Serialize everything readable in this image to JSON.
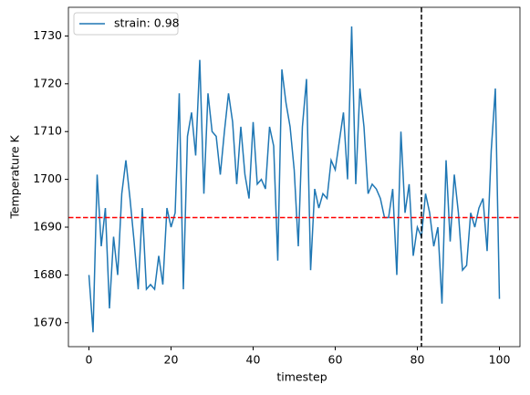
{
  "chart_data": {
    "type": "line",
    "xlabel": "timestep",
    "ylabel": "Temperature K",
    "x": [
      0,
      1,
      2,
      3,
      4,
      5,
      6,
      7,
      8,
      9,
      10,
      11,
      12,
      13,
      14,
      15,
      16,
      17,
      18,
      19,
      20,
      21,
      22,
      23,
      24,
      25,
      26,
      27,
      28,
      29,
      30,
      31,
      32,
      33,
      34,
      35,
      36,
      37,
      38,
      39,
      40,
      41,
      42,
      43,
      44,
      45,
      46,
      47,
      48,
      49,
      50,
      51,
      52,
      53,
      54,
      55,
      56,
      57,
      58,
      59,
      60,
      61,
      62,
      63,
      64,
      65,
      66,
      67,
      68,
      69,
      70,
      71,
      72,
      73,
      74,
      75,
      76,
      77,
      78,
      79,
      80,
      81,
      82,
      83,
      84,
      85,
      86,
      87,
      88,
      89,
      90,
      91,
      92,
      93,
      94,
      95,
      96,
      97,
      98,
      99,
      100
    ],
    "series": [
      {
        "name": "strain: 0.98",
        "color": "#1f77b4",
        "values": [
          1680,
          1668,
          1701,
          1686,
          1694,
          1673,
          1688,
          1680,
          1697,
          1704,
          1696,
          1687,
          1677,
          1694,
          1677,
          1678,
          1677,
          1684,
          1678,
          1694,
          1690,
          1693,
          1718,
          1677,
          1709,
          1714,
          1705,
          1725,
          1697,
          1718,
          1710,
          1709,
          1701,
          1710,
          1718,
          1712,
          1699,
          1711,
          1701,
          1696,
          1712,
          1699,
          1700,
          1698,
          1711,
          1707,
          1683,
          1723,
          1716,
          1711,
          1702,
          1686,
          1711,
          1721,
          1681,
          1698,
          1694,
          1697,
          1696,
          1704,
          1702,
          1708,
          1714,
          1700,
          1732,
          1699,
          1719,
          1711,
          1697,
          1699,
          1698,
          1696,
          1692,
          1692,
          1698,
          1680,
          1710,
          1693,
          1699,
          1684,
          1690,
          1688,
          1697,
          1693,
          1686,
          1690,
          1674,
          1704,
          1687,
          1701,
          1693,
          1681,
          1682,
          1693,
          1690,
          1694,
          1696,
          1685,
          1706,
          1719,
          1675
        ]
      }
    ],
    "hlines": [
      {
        "value": 1692,
        "color": "#ff0000"
      }
    ],
    "vlines": [
      {
        "value": 81,
        "color": "#000000"
      }
    ],
    "xlim": [
      -5,
      105
    ],
    "ylim": [
      1665,
      1736
    ],
    "xticks": [
      0,
      20,
      40,
      60,
      80,
      100
    ],
    "yticks": [
      1670,
      1680,
      1690,
      1700,
      1710,
      1720,
      1730
    ],
    "legend": "upper left"
  }
}
